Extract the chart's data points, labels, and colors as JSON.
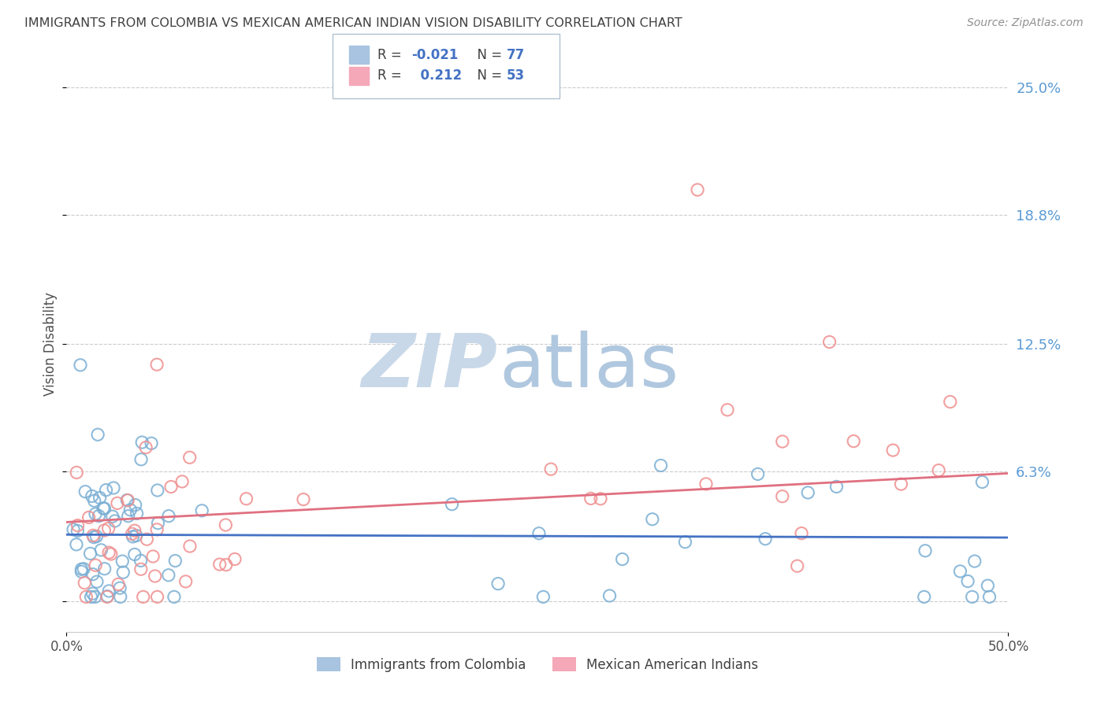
{
  "title": "IMMIGRANTS FROM COLOMBIA VS MEXICAN AMERICAN INDIAN VISION DISABILITY CORRELATION CHART",
  "source": "Source: ZipAtlas.com",
  "ylabel": "Vision Disability",
  "legend_blue_R": "-0.021",
  "legend_blue_N": "77",
  "legend_pink_R": "0.212",
  "legend_pink_N": "53",
  "y_ticks": [
    0.0,
    0.063,
    0.125,
    0.188,
    0.25
  ],
  "y_tick_labels": [
    "",
    "6.3%",
    "12.5%",
    "18.8%",
    "25.0%"
  ],
  "xlim": [
    0.0,
    0.5
  ],
  "ylim": [
    -0.015,
    0.265
  ],
  "scatter_color_blue": "#7bafd4",
  "scatter_color_pink": "#f09090",
  "trendline_color_blue": "#4472c4",
  "trendline_color_pink": "#e07080",
  "watermark_zip_color": "#c8d8e8",
  "watermark_atlas_color": "#b8cce0",
  "grid_color": "#cccccc",
  "title_color": "#404040",
  "axis_tick_color": "#5b9bd5",
  "legend_box_color": "#5b9bd5",
  "bottom_legend_blue_label": "Immigrants from Colombia",
  "bottom_legend_pink_label": "Mexican American Indians"
}
